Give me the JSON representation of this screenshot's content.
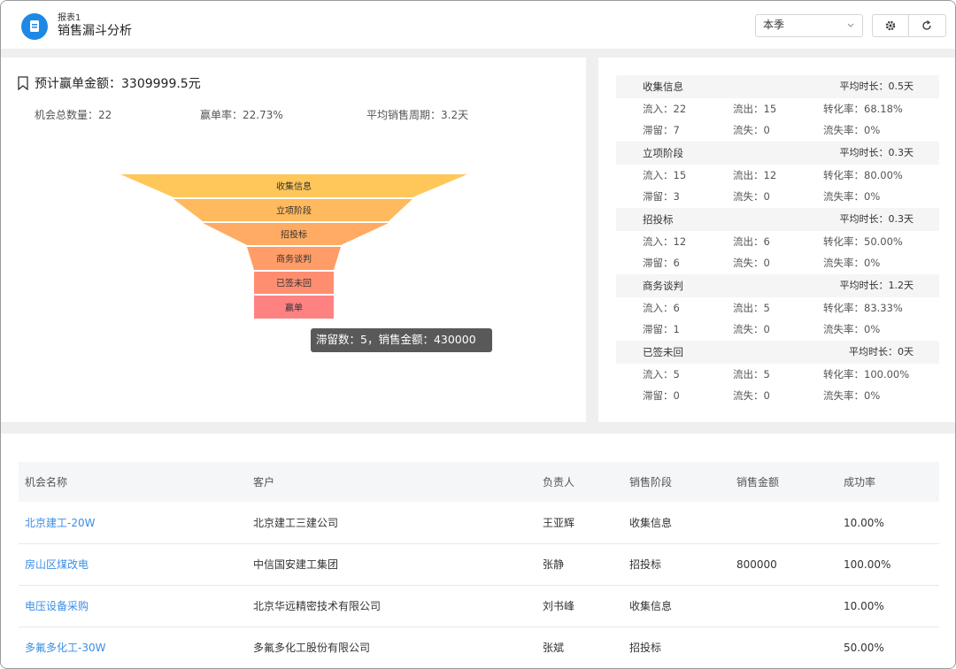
{
  "header": {
    "subtitle": "报表1",
    "title": "销售漏斗分析",
    "period": "本季"
  },
  "summary": {
    "forecast": "预计赢单金额：3309999.5元",
    "stats": [
      "机会总数量：22",
      "赢单率：22.73%",
      "平均销售周期：3.2天"
    ]
  },
  "funnel": {
    "stages": [
      "收集信息",
      "立项阶段",
      "招投标",
      "商务谈判",
      "已签未回",
      "赢单"
    ],
    "tooltip": "滞留数：5，销售金额：430000"
  },
  "stages": [
    {
      "name": "收集信息",
      "avg": "平均时长：0.5天",
      "metrics": [
        "流入：22",
        "流出：15",
        "转化率：68.18%",
        "滞留：7",
        "流失：0",
        "流失率：0%"
      ]
    },
    {
      "name": "立项阶段",
      "avg": "平均时长：0.3天",
      "metrics": [
        "流入：15",
        "流出：12",
        "转化率：80.00%",
        "滞留：3",
        "流失：0",
        "流失率：0%"
      ]
    },
    {
      "name": "招投标",
      "avg": "平均时长：0.3天",
      "metrics": [
        "流入：12",
        "流出：6",
        "转化率：50.00%",
        "滞留：6",
        "流失：0",
        "流失率：0%"
      ]
    },
    {
      "name": "商务谈判",
      "avg": "平均时长：1.2天",
      "metrics": [
        "流入：6",
        "流出：5",
        "转化率：83.33%",
        "滞留：1",
        "流失：0",
        "流失率：0%"
      ]
    },
    {
      "name": "已签未回",
      "avg": "平均时长：0天",
      "metrics": [
        "流入：5",
        "流出：5",
        "转化率：100.00%",
        "滞留：0",
        "流失：0",
        "流失率：0%"
      ]
    }
  ],
  "table": {
    "columns": [
      "机会名称",
      "客户",
      "负责人",
      "销售阶段",
      "销售金额",
      "成功率"
    ],
    "rows": [
      [
        "北京建工-20W",
        "北京建工三建公司",
        "王亚辉",
        "收集信息",
        null,
        "10.00%"
      ],
      [
        "房山区煤改电",
        "中信国安建工集团",
        "张静",
        "招投标",
        "800000",
        "100.00%"
      ],
      [
        "电压设备采购",
        "北京华远精密技术有限公司",
        "刘书峰",
        "收集信息",
        null,
        "10.00%"
      ],
      [
        "多氟多化工-30W",
        "多氟多化工股份有限公司",
        "张斌",
        "招投标",
        null,
        "50.00%"
      ]
    ]
  }
}
